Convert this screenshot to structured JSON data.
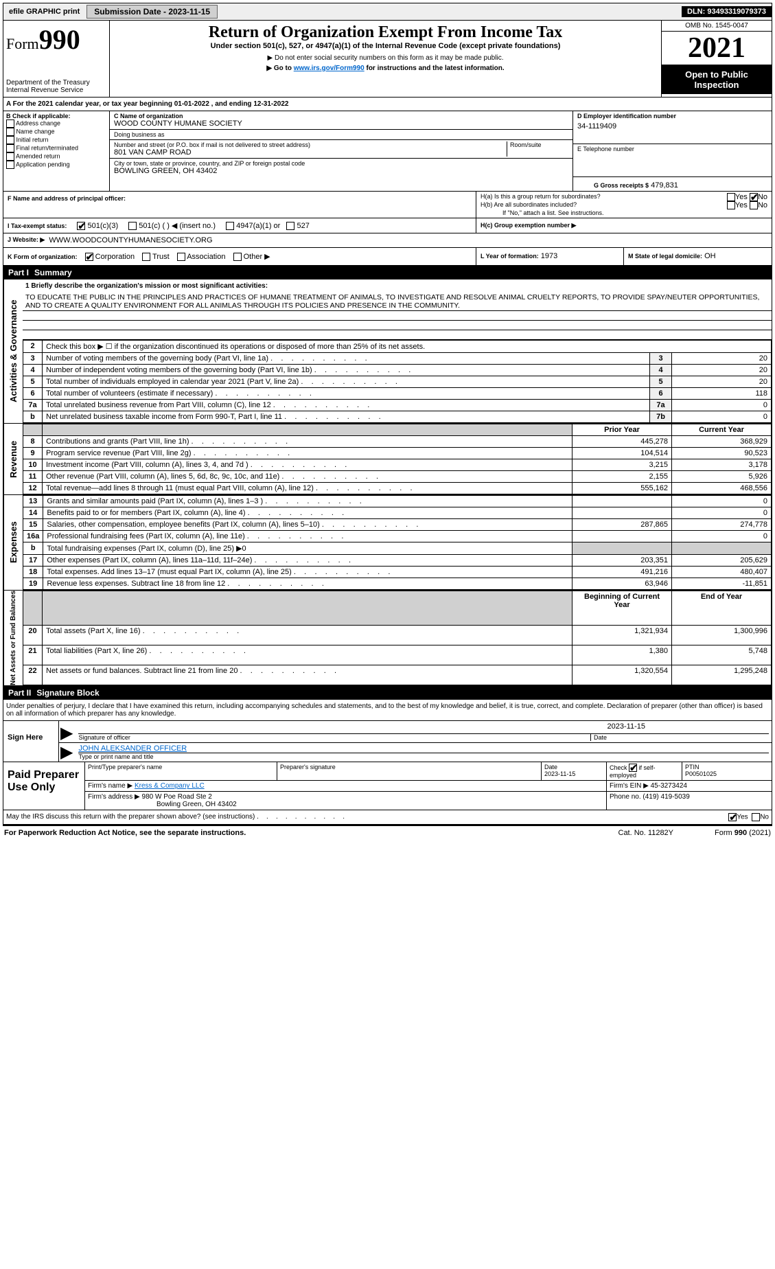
{
  "topbar": {
    "efile": "efile GRAPHIC print",
    "submission": "Submission Date - 2023-11-15",
    "dln": "DLN: 93493319079373"
  },
  "header": {
    "form_prefix": "Form",
    "form_no": "990",
    "title": "Return of Organization Exempt From Income Tax",
    "subtitle": "Under section 501(c), 527, or 4947(a)(1) of the Internal Revenue Code (except private foundations)",
    "note1": "▶ Do not enter social security numbers on this form as it may be made public.",
    "note2_pre": "▶ Go to ",
    "note2_link": "www.irs.gov/Form990",
    "note2_post": " for instructions and the latest information.",
    "dept": "Department of the Treasury",
    "irs": "Internal Revenue Service",
    "omb": "OMB No. 1545-0047",
    "year": "2021",
    "open": "Open to Public Inspection"
  },
  "lineA": "A For the 2021 calendar year, or tax year beginning 01-01-2022    , and ending 12-31-2022",
  "checkB": {
    "label": "B Check if applicable:",
    "items": [
      "Address change",
      "Name change",
      "Initial return",
      "Final return/terminated",
      "Amended return",
      "Application pending"
    ]
  },
  "sectionC": {
    "name_lbl": "C Name of organization",
    "name": "WOOD COUNTY HUMANE SOCIETY",
    "dba_lbl": "Doing business as",
    "dba": "",
    "street_lbl": "Number and street (or P.O. box if mail is not delivered to street address)",
    "room_lbl": "Room/suite",
    "street": "801 VAN CAMP ROAD",
    "city_lbl": "City or town, state or province, country, and ZIP or foreign postal code",
    "city": "BOWLING GREEN, OH  43402"
  },
  "sectionD": {
    "lbl": "D Employer identification number",
    "val": "34-1119409"
  },
  "sectionE": {
    "lbl": "E Telephone number",
    "val": ""
  },
  "sectionG": {
    "lbl": "G Gross receipts $",
    "val": "479,831"
  },
  "sectionF": {
    "lbl": "F  Name and address of principal officer:",
    "val": ""
  },
  "sectionH": {
    "a": "H(a)  Is this a group return for subordinates?",
    "b": "H(b)  Are all subordinates included?",
    "b_note": "If \"No,\" attach a list. See instructions.",
    "c": "H(c)  Group exemption number ▶",
    "yes": "Yes",
    "no": "No"
  },
  "sectionI": {
    "lbl": "I    Tax-exempt status:",
    "c3": "501(c)(3)",
    "c": "501(c) (   ) ◀ (insert no.)",
    "a1": "4947(a)(1) or",
    "s527": "527"
  },
  "sectionJ": {
    "lbl": "J    Website: ▶",
    "val": "WWW.WOODCOUNTYHUMANESOCIETY.ORG"
  },
  "sectionK": {
    "lbl": "K Form of organization:",
    "opts": [
      "Corporation",
      "Trust",
      "Association",
      "Other ▶"
    ]
  },
  "sectionL": {
    "lbl": "L Year of formation:",
    "val": "1973"
  },
  "sectionM": {
    "lbl": "M State of legal domicile:",
    "val": "OH"
  },
  "part1": {
    "num": "Part I",
    "title": "Summary"
  },
  "mission_lbl": "1  Briefly describe the organization's mission or most significant activities:",
  "mission": "TO EDUCATE THE PUBLIC IN THE PRINCIPLES AND PRACTICES OF HUMANE TREATMENT OF ANIMALS, TO INVESTIGATE AND RESOLVE ANIMAL CRUELTY REPORTS, TO PROVIDE SPAY/NEUTER OPPORTUNITIES, AND TO CREATE A QUALITY ENVIRONMENT FOR ALL ANIMLAS THROUGH ITS POLICIES AND PRESENCE IN THE COMMUNITY.",
  "governance_lines": [
    {
      "n": "2",
      "txt": "Check this box ▶ ☐  if the organization discontinued its operations or disposed of more than 25% of its net assets."
    },
    {
      "n": "3",
      "txt": "Number of voting members of the governing body (Part VI, line 1a)",
      "box": "3",
      "val": "20"
    },
    {
      "n": "4",
      "txt": "Number of independent voting members of the governing body (Part VI, line 1b)",
      "box": "4",
      "val": "20"
    },
    {
      "n": "5",
      "txt": "Total number of individuals employed in calendar year 2021 (Part V, line 2a)",
      "box": "5",
      "val": "20"
    },
    {
      "n": "6",
      "txt": "Total number of volunteers (estimate if necessary)",
      "box": "6",
      "val": "118"
    },
    {
      "n": "7a",
      "txt": "Total unrelated business revenue from Part VIII, column (C), line 12",
      "box": "7a",
      "val": "0"
    },
    {
      "n": "b",
      "txt": "Net unrelated business taxable income from Form 990-T, Part I, line 11",
      "box": "7b",
      "val": "0"
    }
  ],
  "pycy_header": {
    "py": "Prior Year",
    "cy": "Current Year"
  },
  "revenue_lines": [
    {
      "n": "8",
      "txt": "Contributions and grants (Part VIII, line 1h)",
      "py": "445,278",
      "cy": "368,929"
    },
    {
      "n": "9",
      "txt": "Program service revenue (Part VIII, line 2g)",
      "py": "104,514",
      "cy": "90,523"
    },
    {
      "n": "10",
      "txt": "Investment income (Part VIII, column (A), lines 3, 4, and 7d )",
      "py": "3,215",
      "cy": "3,178"
    },
    {
      "n": "11",
      "txt": "Other revenue (Part VIII, column (A), lines 5, 6d, 8c, 9c, 10c, and 11e)",
      "py": "2,155",
      "cy": "5,926"
    },
    {
      "n": "12",
      "txt": "Total revenue—add lines 8 through 11 (must equal Part VIII, column (A), line 12)",
      "py": "555,162",
      "cy": "468,556"
    }
  ],
  "expense_lines": [
    {
      "n": "13",
      "txt": "Grants and similar amounts paid (Part IX, column (A), lines 1–3 )",
      "py": "",
      "cy": "0"
    },
    {
      "n": "14",
      "txt": "Benefits paid to or for members (Part IX, column (A), line 4)",
      "py": "",
      "cy": "0"
    },
    {
      "n": "15",
      "txt": "Salaries, other compensation, employee benefits (Part IX, column (A), lines 5–10)",
      "py": "287,865",
      "cy": "274,778"
    },
    {
      "n": "16a",
      "txt": "Professional fundraising fees (Part IX, column (A), line 11e)",
      "py": "",
      "cy": "0"
    },
    {
      "n": "b",
      "txt": "Total fundraising expenses (Part IX, column (D), line 25) ▶0",
      "py": null,
      "cy": null,
      "grey": true
    },
    {
      "n": "17",
      "txt": "Other expenses (Part IX, column (A), lines 11a–11d, 11f–24e)",
      "py": "203,351",
      "cy": "205,629"
    },
    {
      "n": "18",
      "txt": "Total expenses. Add lines 13–17 (must equal Part IX, column (A), line 25)",
      "py": "491,216",
      "cy": "480,407"
    },
    {
      "n": "19",
      "txt": "Revenue less expenses. Subtract line 18 from line 12",
      "py": "63,946",
      "cy": "-11,851"
    }
  ],
  "net_header": {
    "py": "Beginning of Current Year",
    "cy": "End of Year"
  },
  "net_lines": [
    {
      "n": "20",
      "txt": "Total assets (Part X, line 16)",
      "py": "1,321,934",
      "cy": "1,300,996"
    },
    {
      "n": "21",
      "txt": "Total liabilities (Part X, line 26)",
      "py": "1,380",
      "cy": "5,748"
    },
    {
      "n": "22",
      "txt": "Net assets or fund balances. Subtract line 21 from line 20",
      "py": "1,320,554",
      "cy": "1,295,248"
    }
  ],
  "vtabs": {
    "gov": "Activities & Governance",
    "rev": "Revenue",
    "exp": "Expenses",
    "net": "Net Assets or Fund Balances"
  },
  "part2": {
    "num": "Part II",
    "title": "Signature Block",
    "decl": "Under penalties of perjury, I declare that I have examined this return, including accompanying schedules and statements, and to the best of my knowledge and belief, it is true, correct, and complete. Declaration of preparer (other than officer) is based on all information of which preparer has any knowledge."
  },
  "sign_here": {
    "lbl": "Sign Here",
    "sig_lbl": "Signature of officer",
    "date_lbl": "Date",
    "date": "2023-11-15",
    "name": "JOHN ALEKSANDER  OFFICER",
    "name_lbl": "Type or print name and title"
  },
  "paid": {
    "lbl": "Paid Preparer Use Only",
    "h": [
      "Print/Type preparer's name",
      "Preparer's signature",
      "Date",
      "",
      "PTIN"
    ],
    "date": "2023-11-15",
    "check_lbl": "Check ☑ if self-employed",
    "ptin": "P00501025",
    "firm_lbl": "Firm's name   ▶",
    "firm": "Kress & Company LLC",
    "ein_lbl": "Firm's EIN ▶",
    "ein": "45-3273424",
    "addr_lbl": "Firm's address ▶",
    "addr1": "980 W Poe Road Ste 2",
    "addr2": "Bowling Green, OH  43402",
    "phone_lbl": "Phone no.",
    "phone": "(419) 419-5039"
  },
  "discuss": "May the IRS discuss this return with the preparer shown above? (see instructions)",
  "footer": {
    "pra": "For Paperwork Reduction Act Notice, see the separate instructions.",
    "cat": "Cat. No. 11282Y",
    "form": "Form 990 (2021)"
  },
  "colors": {
    "link": "#0066cc",
    "hdr_bg": "#000000",
    "hdr_fg": "#ffffff",
    "grey": "#d0d0d0"
  }
}
